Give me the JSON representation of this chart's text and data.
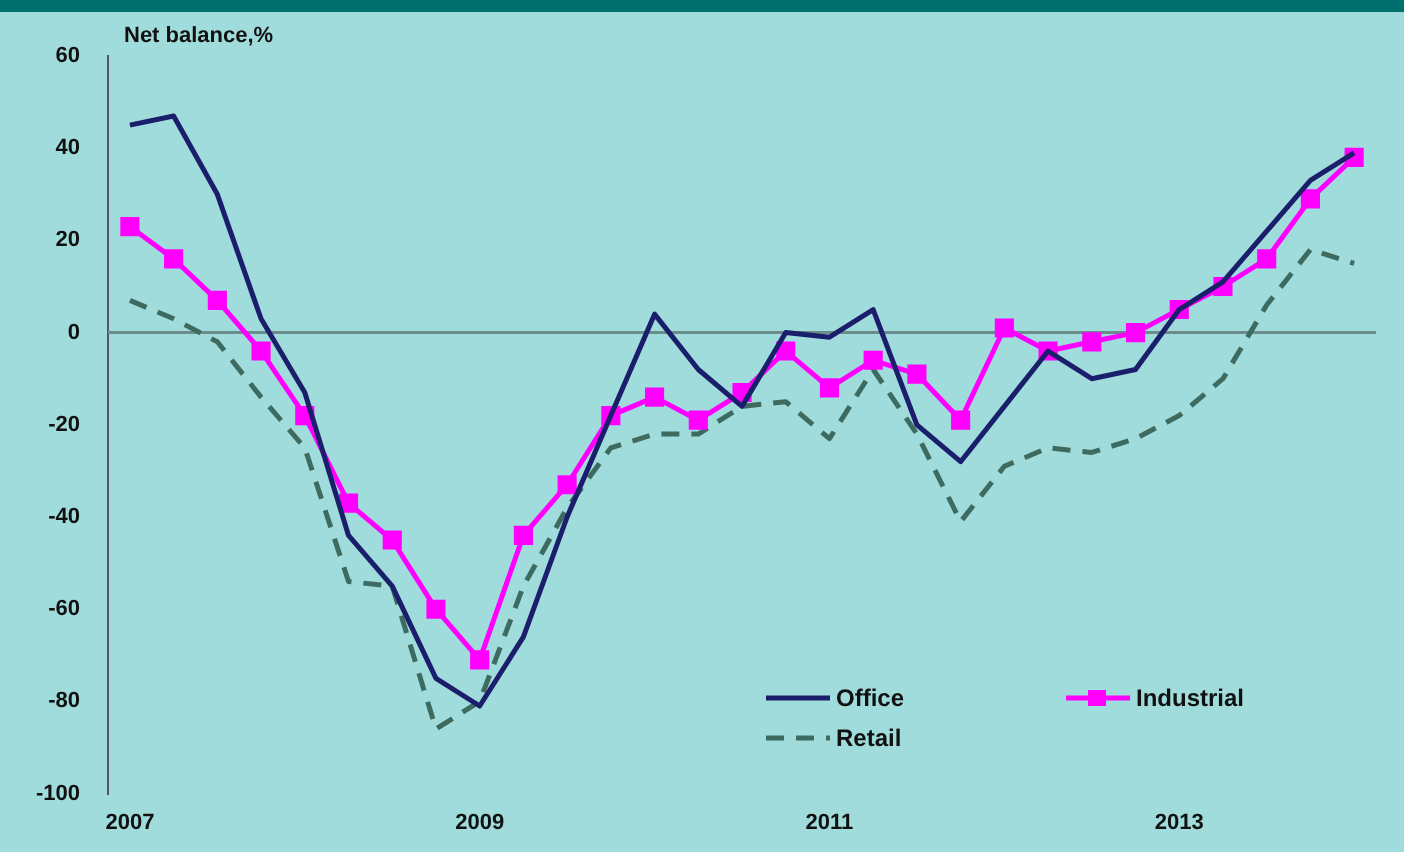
{
  "chart_data": {
    "type": "line",
    "ylabel": "Net balance,%",
    "categories": [
      "2007",
      null,
      null,
      null,
      null,
      null,
      null,
      null,
      "2009",
      null,
      null,
      null,
      null,
      null,
      null,
      null,
      "2011",
      null,
      null,
      null,
      null,
      null,
      null,
      null,
      "2013",
      null,
      null,
      null,
      null
    ],
    "ylim": [
      -100,
      60
    ],
    "yticks": [
      -100,
      -80,
      -60,
      -40,
      -20,
      0,
      20,
      40,
      60
    ],
    "grid": false,
    "ref_lines": [
      {
        "axis": "y",
        "value": 0,
        "color": "#6a8c8c"
      }
    ],
    "legend": "bottom right",
    "series": [
      {
        "name": "Office",
        "color": "#1b1f6b",
        "line_style": "solid",
        "marker": "none",
        "values": [
          45,
          47,
          30,
          3,
          -13,
          -44,
          -55,
          -75,
          -81,
          -66,
          -40,
          -18,
          4,
          -8,
          -16,
          0,
          -1,
          5,
          -20,
          -28,
          -16,
          -4,
          -10,
          -8,
          5,
          11,
          22,
          33,
          39
        ]
      },
      {
        "name": "Industrial",
        "color": "#ff00ff",
        "line_style": "solid",
        "marker": "square",
        "values": [
          23,
          16,
          7,
          -4,
          -18,
          -37,
          -45,
          -60,
          -71,
          -44,
          -33,
          -18,
          -14,
          -19,
          -13,
          -4,
          -12,
          -6,
          -9,
          -19,
          1,
          -4,
          -2,
          0,
          5,
          10,
          16,
          29,
          38
        ]
      },
      {
        "name": "Retail",
        "color": "#3e6b60",
        "line_style": "dashed",
        "marker": "none",
        "values": [
          7,
          3,
          -2,
          -14,
          -25,
          -54,
          -55,
          -86,
          -80,
          -55,
          -38,
          -25,
          -22,
          -22,
          -16,
          -15,
          -23,
          -8,
          -22,
          -41,
          -29,
          -25,
          -26,
          -23,
          -18,
          -10,
          6,
          18,
          15
        ]
      }
    ]
  }
}
